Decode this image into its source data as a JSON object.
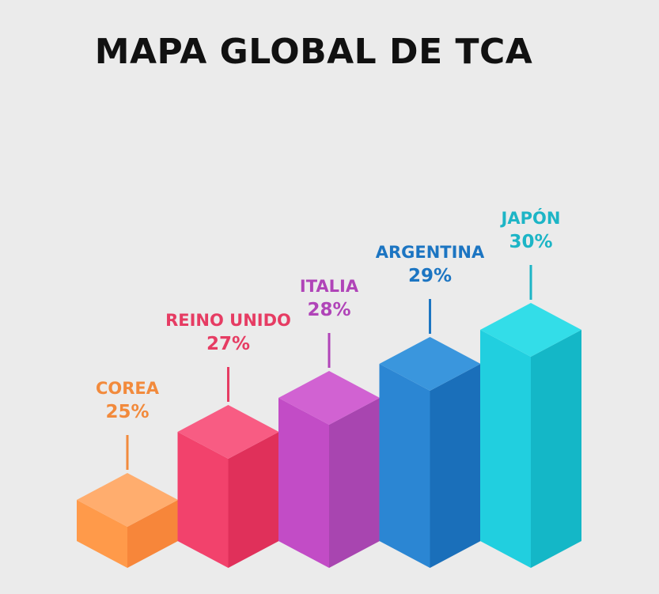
{
  "chart_data": {
    "type": "bar",
    "title": "MAPA GLOBAL DE TCA",
    "categories": [
      "COREA",
      "REINO UNIDO",
      "ITALIA",
      "ARGENTINA",
      "JAPÓN"
    ],
    "values": [
      25,
      27,
      28,
      29,
      30
    ],
    "value_labels": [
      "25%",
      "27%",
      "28%",
      "29%",
      "30%"
    ],
    "unit": "%",
    "xlabel": "",
    "ylabel": "",
    "grid": false,
    "style": "3d-isometric-bars",
    "colors": {
      "COREA": {
        "text": "#f28a3c",
        "front": "#ff9a4a",
        "side": "#f7863a",
        "top": "#ffad6e"
      },
      "REINO UNIDO": {
        "text": "#e63c63",
        "front": "#f2426c",
        "side": "#e0305a",
        "top": "#f85c83"
      },
      "ITALIA": {
        "text": "#b044b8",
        "front": "#c24cc6",
        "side": "#a845b0",
        "top": "#d162d2"
      },
      "ARGENTINA": {
        "text": "#1c75c2",
        "front": "#2b86d3",
        "side": "#1a6fba",
        "top": "#3a96dd"
      },
      "JAPÓN": {
        "text": "#1db5c6",
        "front": "#21cfdf",
        "side": "#14b7c7",
        "top": "#33dde8"
      }
    }
  }
}
